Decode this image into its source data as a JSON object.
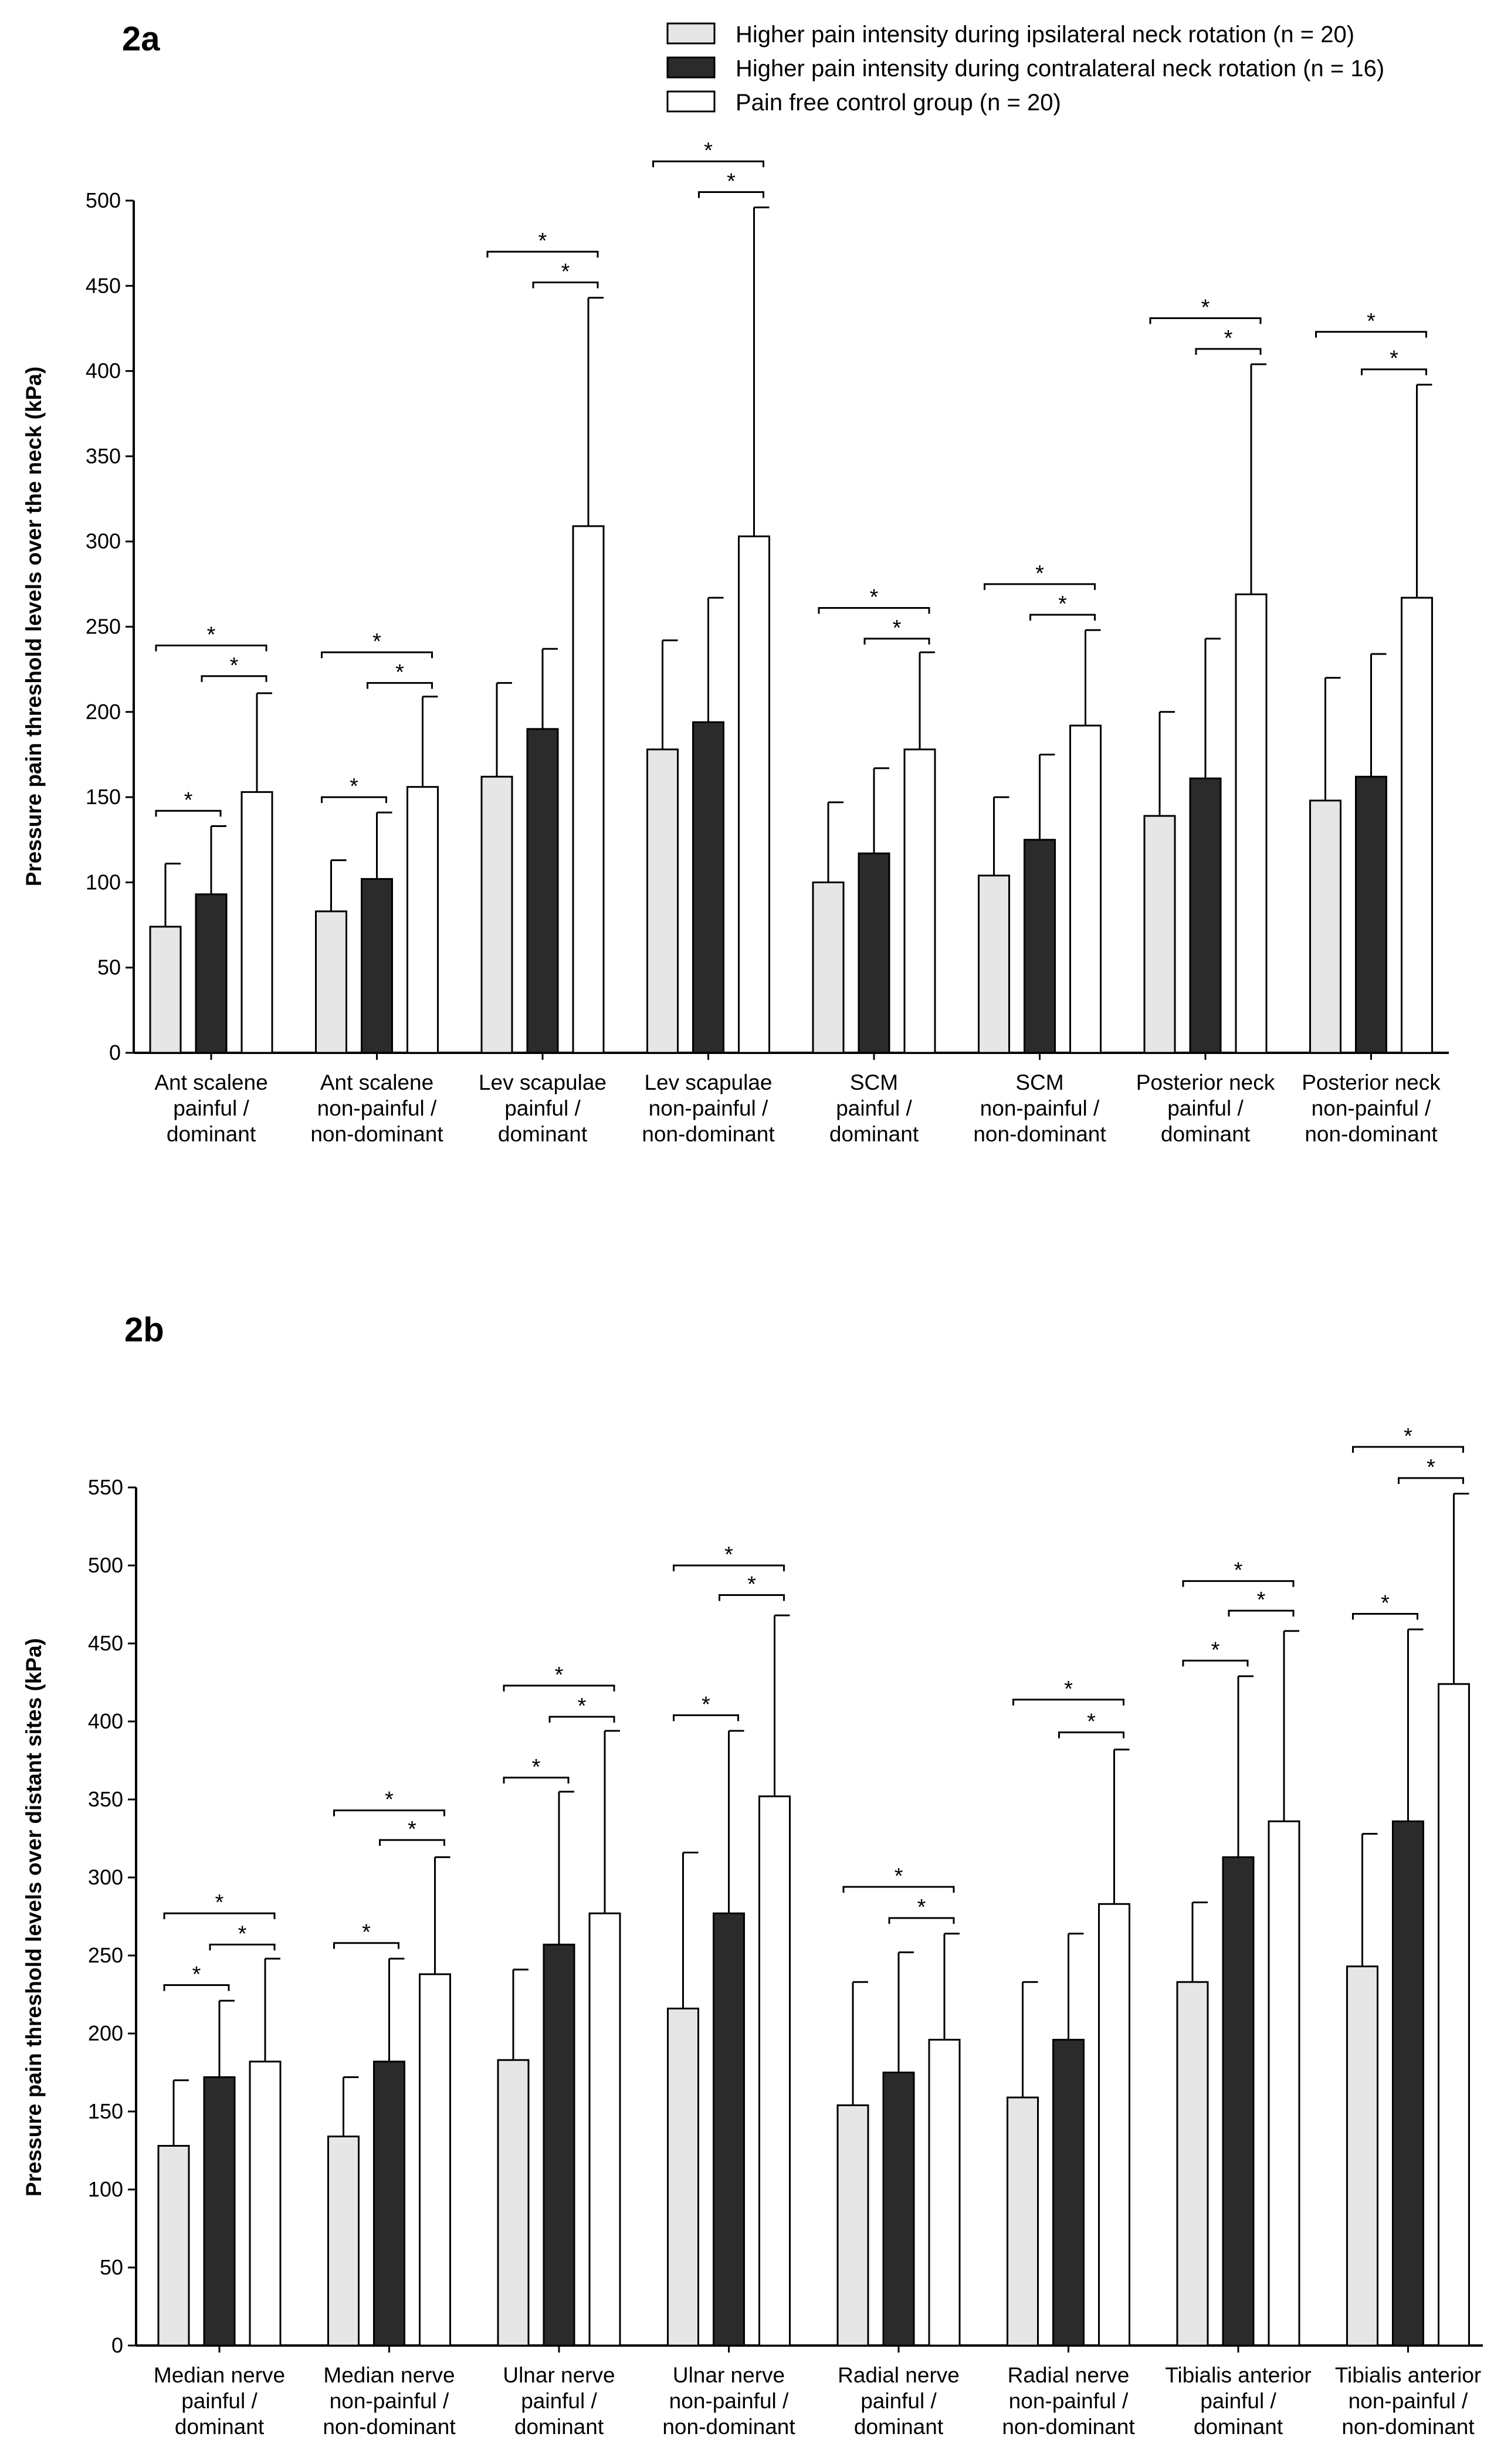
{
  "legend": [
    {
      "label": "Higher pain intensity during ipsilateral neck rotation (n = 20)",
      "color": "#e6e6e6"
    },
    {
      "label": "Higher pain intensity during contralateral neck rotation (n = 16)",
      "color": "#2b2b2b"
    },
    {
      "label": "Pain free control group (n = 20)",
      "color": "#ffffff"
    }
  ],
  "chart_data": [
    {
      "panel": "2a",
      "type": "bar",
      "ylabel": "Pressure pain threshold levels over the neck (kPa)",
      "ylim": [
        0,
        500
      ],
      "yticks": [
        0,
        50,
        100,
        150,
        200,
        250,
        300,
        350,
        400,
        450,
        500
      ],
      "categories": [
        [
          "Ant scalene",
          "painful /",
          "dominant"
        ],
        [
          "Ant scalene",
          "non-painful /",
          "non-dominant"
        ],
        [
          "Lev scapulae",
          "painful /",
          "dominant"
        ],
        [
          "Lev scapulae",
          "non-painful /",
          "non-dominant"
        ],
        [
          "SCM",
          "painful /",
          "dominant"
        ],
        [
          "SCM",
          "non-painful /",
          "non-dominant"
        ],
        [
          "Posterior neck",
          "painful /",
          "dominant"
        ],
        [
          "Posterior neck",
          "non-painful /",
          "non-dominant"
        ]
      ],
      "series": [
        {
          "name": "Higher pain intensity during ipsilateral neck rotation (n = 20)",
          "values": [
            74,
            83,
            162,
            178,
            100,
            104,
            139,
            148
          ],
          "errors": [
            37,
            30,
            55,
            64,
            47,
            46,
            61,
            72
          ]
        },
        {
          "name": "Higher pain intensity during contralateral neck rotation (n = 16)",
          "values": [
            93,
            102,
            190,
            194,
            117,
            125,
            161,
            162
          ],
          "errors": [
            40,
            39,
            47,
            73,
            50,
            50,
            82,
            72
          ]
        },
        {
          "name": "Pain free control group (n = 20)",
          "values": [
            153,
            156,
            309,
            303,
            178,
            192,
            269,
            267
          ],
          "errors": [
            58,
            53,
            134,
            193,
            57,
            56,
            135,
            125
          ]
        }
      ],
      "significance": [
        {
          "group": 0,
          "from": 0,
          "to": 1,
          "value": 142,
          "label": "*"
        },
        {
          "group": 0,
          "from": 1,
          "to": 2,
          "value": 221,
          "label": "*"
        },
        {
          "group": 0,
          "from": 0,
          "to": 2,
          "value": 239,
          "label": "*"
        },
        {
          "group": 1,
          "from": 0,
          "to": 1,
          "value": 150,
          "label": "*"
        },
        {
          "group": 1,
          "from": 1,
          "to": 2,
          "value": 217,
          "label": "*"
        },
        {
          "group": 1,
          "from": 0,
          "to": 2,
          "value": 235,
          "label": "*"
        },
        {
          "group": 2,
          "from": 1,
          "to": 2,
          "value": 452,
          "label": "*"
        },
        {
          "group": 2,
          "from": 0,
          "to": 2,
          "value": 470,
          "label": "*"
        },
        {
          "group": 3,
          "from": 1,
          "to": 2,
          "value": 505,
          "label": "*"
        },
        {
          "group": 3,
          "from": 0,
          "to": 2,
          "value": 523,
          "label": "*"
        },
        {
          "group": 4,
          "from": 1,
          "to": 2,
          "value": 243,
          "label": "*"
        },
        {
          "group": 4,
          "from": 0,
          "to": 2,
          "value": 261,
          "label": "*"
        },
        {
          "group": 5,
          "from": 1,
          "to": 2,
          "value": 257,
          "label": "*"
        },
        {
          "group": 5,
          "from": 0,
          "to": 2,
          "value": 275,
          "label": "*"
        },
        {
          "group": 6,
          "from": 1,
          "to": 2,
          "value": 413,
          "label": "*"
        },
        {
          "group": 6,
          "from": 0,
          "to": 2,
          "value": 431,
          "label": "*"
        },
        {
          "group": 7,
          "from": 1,
          "to": 2,
          "value": 401,
          "label": "*"
        },
        {
          "group": 7,
          "from": 0,
          "to": 2,
          "value": 423,
          "label": "*"
        }
      ]
    },
    {
      "panel": "2b",
      "type": "bar",
      "ylabel": "Pressure pain threshold levels over distant sites (kPa)",
      "ylim": [
        0,
        550
      ],
      "yticks": [
        0,
        50,
        100,
        150,
        200,
        250,
        300,
        350,
        400,
        450,
        500,
        550
      ],
      "categories": [
        [
          "Median nerve",
          "painful /",
          "dominant"
        ],
        [
          "Median nerve",
          "non-painful /",
          "non-dominant"
        ],
        [
          "Ulnar nerve",
          "painful /",
          "dominant"
        ],
        [
          "Ulnar nerve",
          "non-painful /",
          "non-dominant"
        ],
        [
          "Radial nerve",
          "painful /",
          "dominant"
        ],
        [
          "Radial nerve",
          "non-painful /",
          "non-dominant"
        ],
        [
          "Tibialis anterior",
          "painful /",
          "dominant"
        ],
        [
          "Tibialis anterior",
          "non-painful /",
          "non-dominant"
        ]
      ],
      "series": [
        {
          "name": "Higher pain intensity during ipsilateral neck rotation (n = 20)",
          "values": [
            128,
            134,
            183,
            216,
            154,
            159,
            233,
            243
          ],
          "errors": [
            42,
            38,
            58,
            100,
            79,
            74,
            51,
            85
          ]
        },
        {
          "name": "Higher pain intensity during contralateral neck rotation (n = 16)",
          "values": [
            172,
            182,
            257,
            277,
            175,
            196,
            313,
            336
          ],
          "errors": [
            49,
            66,
            98,
            117,
            77,
            68,
            116,
            123
          ]
        },
        {
          "name": "Pain free control group (n = 20)",
          "values": [
            182,
            238,
            277,
            352,
            196,
            283,
            336,
            424
          ],
          "errors": [
            66,
            75,
            117,
            116,
            68,
            99,
            122,
            122
          ]
        }
      ],
      "significance": [
        {
          "group": 0,
          "from": 0,
          "to": 1,
          "value": 231,
          "label": "*"
        },
        {
          "group": 0,
          "from": 1,
          "to": 2,
          "value": 257,
          "label": "*"
        },
        {
          "group": 0,
          "from": 0,
          "to": 2,
          "value": 277,
          "label": "*"
        },
        {
          "group": 1,
          "from": 0,
          "to": 1,
          "value": 258,
          "label": "*"
        },
        {
          "group": 1,
          "from": 1,
          "to": 2,
          "value": 324,
          "label": "*"
        },
        {
          "group": 1,
          "from": 0,
          "to": 2,
          "value": 343,
          "label": "*"
        },
        {
          "group": 2,
          "from": 0,
          "to": 1,
          "value": 364,
          "label": "*"
        },
        {
          "group": 2,
          "from": 1,
          "to": 2,
          "value": 403,
          "label": "*"
        },
        {
          "group": 2,
          "from": 0,
          "to": 2,
          "value": 423,
          "label": "*"
        },
        {
          "group": 3,
          "from": 0,
          "to": 1,
          "value": 404,
          "label": "*"
        },
        {
          "group": 3,
          "from": 1,
          "to": 2,
          "value": 481,
          "label": "*"
        },
        {
          "group": 3,
          "from": 0,
          "to": 2,
          "value": 500,
          "label": "*"
        },
        {
          "group": 4,
          "from": 1,
          "to": 2,
          "value": 274,
          "label": "*"
        },
        {
          "group": 4,
          "from": 0,
          "to": 2,
          "value": 294,
          "label": "*"
        },
        {
          "group": 5,
          "from": 1,
          "to": 2,
          "value": 393,
          "label": "*"
        },
        {
          "group": 5,
          "from": 0,
          "to": 2,
          "value": 414,
          "label": "*"
        },
        {
          "group": 6,
          "from": 0,
          "to": 1,
          "value": 439,
          "label": "*"
        },
        {
          "group": 6,
          "from": 1,
          "to": 2,
          "value": 471,
          "label": "*"
        },
        {
          "group": 6,
          "from": 0,
          "to": 2,
          "value": 490,
          "label": "*"
        },
        {
          "group": 7,
          "from": 0,
          "to": 1,
          "value": 469,
          "label": "*"
        },
        {
          "group": 7,
          "from": 1,
          "to": 2,
          "value": 556,
          "label": "*"
        },
        {
          "group": 7,
          "from": 0,
          "to": 2,
          "value": 576,
          "label": "*"
        }
      ]
    }
  ]
}
